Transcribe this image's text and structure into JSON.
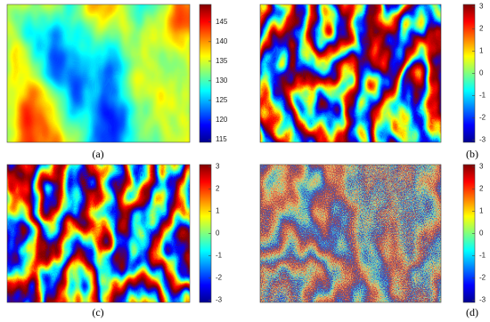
{
  "panels": [
    {
      "caption": "(a)",
      "colorbar": {
        "clim": [
          114.3,
          149.5
        ],
        "ticks": [
          145,
          140,
          135,
          130,
          125,
          120,
          115
        ]
      }
    },
    {
      "caption": "(b)",
      "colorbar": {
        "clim": [
          -3.1,
          3.1
        ],
        "ticks": [
          3,
          2,
          1,
          0,
          -1,
          -2,
          -3
        ]
      }
    },
    {
      "caption": "(c)",
      "colorbar": {
        "clim": [
          -3.1,
          3.1
        ],
        "ticks": [
          3,
          2,
          1,
          0,
          -1,
          -2,
          -3
        ]
      }
    },
    {
      "caption": "(d)",
      "colorbar": {
        "clim": [
          -3.1,
          3.1
        ],
        "ticks": [
          3,
          2,
          1,
          0,
          -1,
          -2,
          -3
        ]
      }
    }
  ]
}
